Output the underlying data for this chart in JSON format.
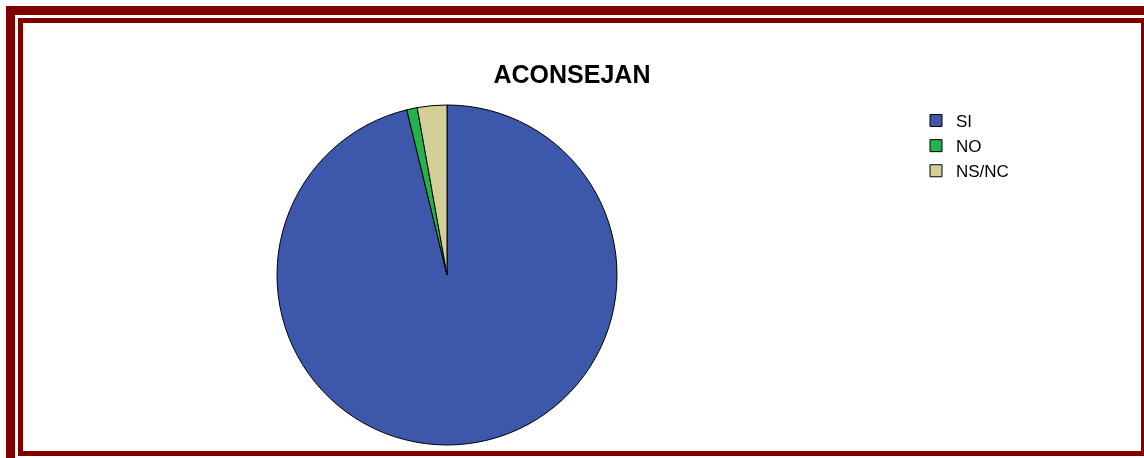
{
  "chart_data": {
    "type": "pie",
    "title": "ACONSEJAN",
    "categories": [
      "SI",
      "NO",
      "NS/NC"
    ],
    "values": [
      96.2,
      1.0,
      2.8
    ],
    "colors": [
      "#3d58ab",
      "#22b34b",
      "#d4cf98"
    ],
    "legend": "top right"
  }
}
